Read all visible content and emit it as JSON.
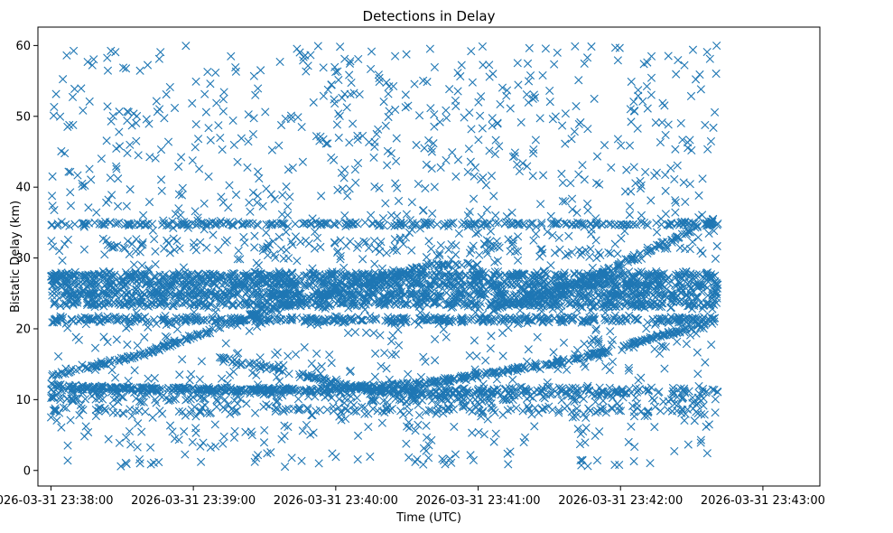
{
  "chart_data": {
    "type": "scatter",
    "title": "Detections in Delay",
    "xlabel": "Time (UTC)",
    "ylabel": "Bistatic Delay (km)",
    "marker": "x",
    "color": "#1f77b4",
    "xlim": [
      -5.5,
      324
    ],
    "ylim": [
      -2.2,
      62.6
    ],
    "x_unit": "seconds after 2026-03-31 23:38:00",
    "x_ticks": [
      {
        "value": 0,
        "label": "2026-03-31 23:38:00"
      },
      {
        "value": 60,
        "label": "2026-03-31 23:39:00"
      },
      {
        "value": 120,
        "label": "2026-03-31 23:40:00"
      },
      {
        "value": 180,
        "label": "2026-03-31 23:41:00"
      },
      {
        "value": 240,
        "label": "2026-03-31 23:42:00"
      },
      {
        "value": 300,
        "label": "2026-03-31 23:43:00"
      }
    ],
    "y_ticks": [
      {
        "value": 0,
        "label": "0"
      },
      {
        "value": 10,
        "label": "10"
      },
      {
        "value": 20,
        "label": "20"
      },
      {
        "value": 30,
        "label": "30"
      },
      {
        "value": 40,
        "label": "40"
      },
      {
        "value": 50,
        "label": "50"
      },
      {
        "value": 60,
        "label": "60"
      }
    ],
    "data_x_range": [
      0,
      281
    ],
    "tracks": [
      {
        "name": "band-34.8",
        "points": [
          [
            0,
            34.8
          ],
          [
            281,
            34.8
          ]
        ],
        "spread": 0.3,
        "density": 1.1
      },
      {
        "name": "band-27.5",
        "points": [
          [
            0,
            27.5
          ],
          [
            281,
            27.5
          ]
        ],
        "spread": 0.5,
        "density": 2.0
      },
      {
        "name": "band-26.5",
        "points": [
          [
            0,
            26.4
          ],
          [
            281,
            26.2
          ]
        ],
        "spread": 0.5,
        "density": 2.0
      },
      {
        "name": "band-24.9",
        "points": [
          [
            0,
            24.9
          ],
          [
            281,
            24.8
          ]
        ],
        "spread": 0.5,
        "density": 2.0
      },
      {
        "name": "band-23.6",
        "points": [
          [
            0,
            23.6
          ],
          [
            281,
            23.5
          ]
        ],
        "spread": 0.5,
        "density": 1.6
      },
      {
        "name": "band-21.3",
        "points": [
          [
            0,
            21.3
          ],
          [
            281,
            21.3
          ]
        ],
        "spread": 0.4,
        "density": 1.6
      },
      {
        "name": "rising-arc",
        "points": [
          [
            0,
            13.3
          ],
          [
            40,
            16.5
          ],
          [
            90,
            22.5
          ],
          [
            130,
            26.3
          ],
          [
            160,
            29.0
          ],
          [
            180,
            29.0
          ]
        ],
        "spread": 0.3,
        "density": 1.6
      },
      {
        "name": "u-curve",
        "points": [
          [
            0,
            12.0
          ],
          [
            40,
            11.5
          ],
          [
            110,
            11.3
          ],
          [
            160,
            12.4
          ],
          [
            220,
            15.6
          ],
          [
            281,
            21.2
          ]
        ],
        "spread": 0.3,
        "density": 1.8
      },
      {
        "name": "descending-curve",
        "points": [
          [
            70,
            15.8
          ],
          [
            100,
            14.0
          ],
          [
            130,
            11.5
          ],
          [
            160,
            10.8
          ],
          [
            190,
            11.2
          ]
        ],
        "spread": 0.35,
        "density": 1.3
      },
      {
        "name": "late-rising",
        "points": [
          [
            185,
            22.5
          ],
          [
            230,
            27.5
          ],
          [
            281,
            35.6
          ]
        ],
        "spread": 0.35,
        "density": 1.4
      },
      {
        "name": "band-11",
        "points": [
          [
            0,
            11.3
          ],
          [
            281,
            11.2
          ]
        ],
        "spread": 0.6,
        "density": 1.2
      },
      {
        "name": "band-8.5",
        "points": [
          [
            0,
            8.5
          ],
          [
            281,
            8.5
          ]
        ],
        "spread": 0.6,
        "density": 0.6
      },
      {
        "name": "band-10.2",
        "points": [
          [
            0,
            10.2
          ],
          [
            281,
            10.2
          ]
        ],
        "spread": 0.6,
        "density": 0.6
      },
      {
        "name": "band-31",
        "points": [
          [
            0,
            31.5
          ],
          [
            281,
            31.5
          ]
        ],
        "spread": 1.4,
        "density": 0.45
      }
    ],
    "background": {
      "y_range": [
        0.5,
        60
      ],
      "count": 1250
    }
  }
}
